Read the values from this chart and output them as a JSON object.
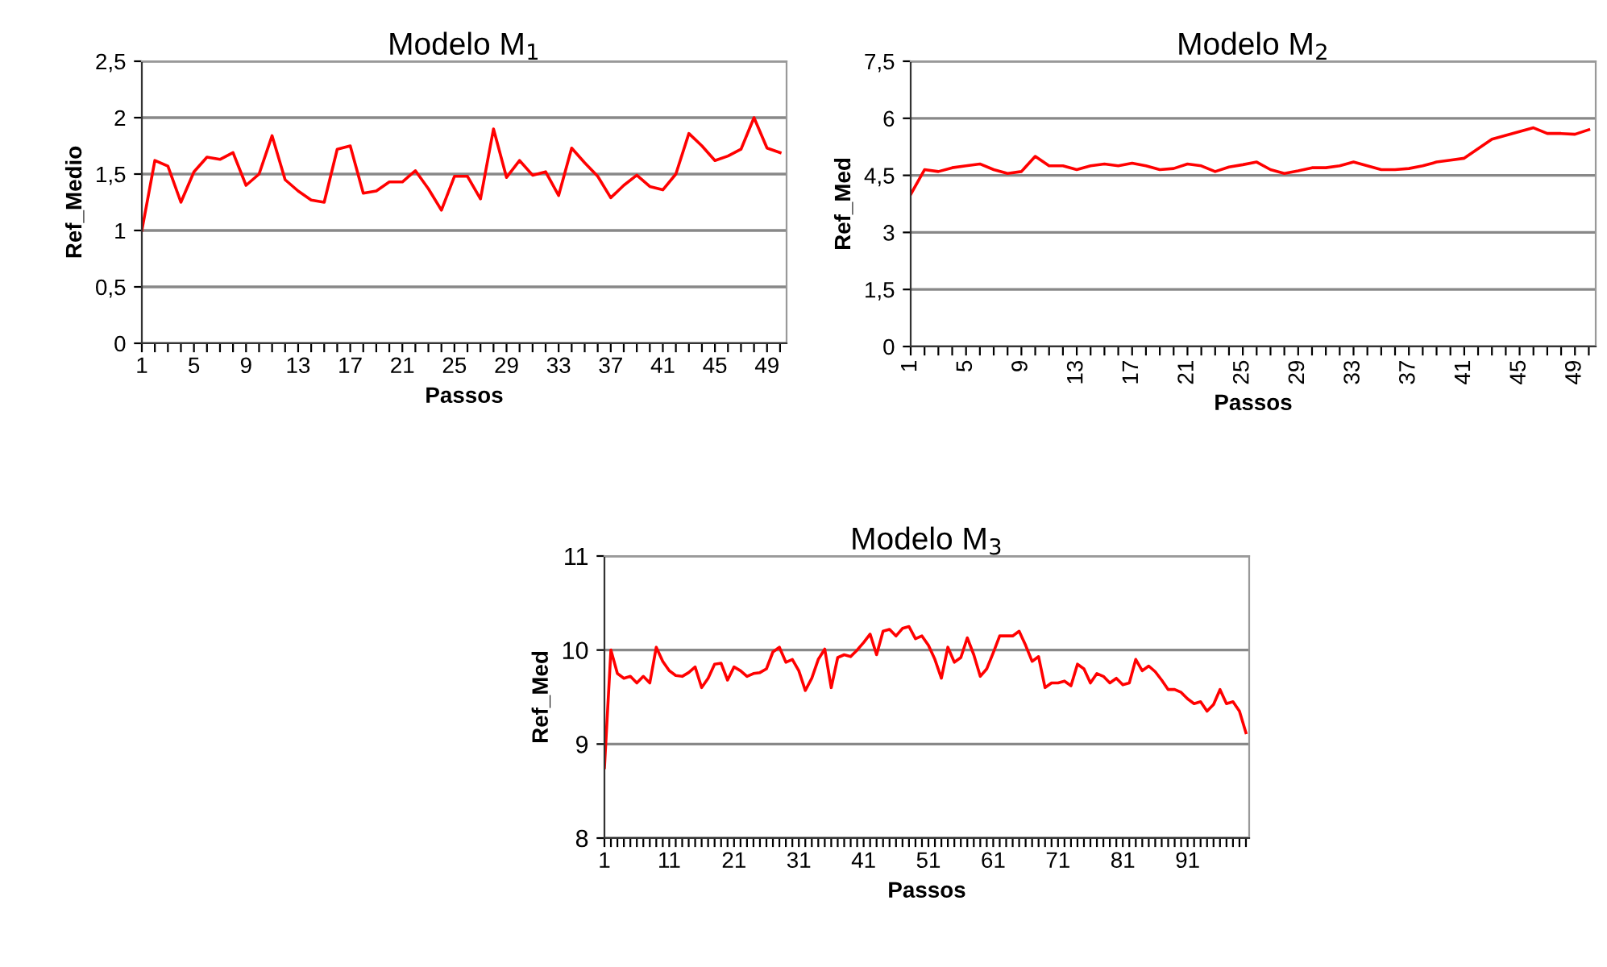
{
  "chart_data": [
    {
      "type": "line",
      "title": "Modelo M$_{1}$",
      "xlabel": "Passos",
      "ylabel": "Ref_Medio",
      "categories": [
        "1",
        null,
        null,
        null,
        "5",
        null,
        null,
        null,
        "9",
        null,
        null,
        null,
        "13",
        null,
        null,
        null,
        "17",
        null,
        null,
        null,
        "21",
        null,
        null,
        null,
        "25",
        null,
        null,
        null,
        "29",
        null,
        null,
        null,
        "33",
        null,
        null,
        null,
        "37",
        null,
        null,
        null,
        "41",
        null,
        null,
        null,
        "45",
        null,
        null,
        null,
        "49",
        null
      ],
      "series": [
        {
          "color": "#ff0000",
          "values": [
            1.0,
            1.62,
            1.57,
            1.25,
            1.52,
            1.65,
            1.63,
            1.69,
            1.4,
            1.5,
            1.84,
            1.45,
            1.35,
            1.27,
            1.25,
            1.72,
            1.75,
            1.33,
            1.35,
            1.43,
            1.43,
            1.53,
            1.37,
            1.18,
            1.48,
            1.48,
            1.28,
            1.9,
            1.47,
            1.62,
            1.49,
            1.52,
            1.31,
            1.73,
            1.6,
            1.48,
            1.29,
            1.4,
            1.49,
            1.39,
            1.36,
            1.5,
            1.86,
            1.75,
            1.62,
            1.66,
            1.72,
            2.0,
            1.73,
            1.69
          ]
        }
      ],
      "ylim": [
        0,
        2.5
      ],
      "yticks": [
        0,
        {
          "value": 0.5,
          "label": "0,5"
        },
        1,
        {
          "value": 1.5,
          "label": "1,5"
        },
        2,
        {
          "value": 2.5,
          "label": "2,5"
        }
      ],
      "grid": "y",
      "marker": "none",
      "line_style": "solid"
    },
    {
      "type": "line",
      "title": "Modelo M$_{2}$",
      "xlabel": "Passos",
      "ylabel": "Ref_Med",
      "categories": [
        "1",
        null,
        null,
        null,
        "5",
        null,
        null,
        null,
        "9",
        null,
        null,
        null,
        "13",
        null,
        null,
        null,
        "17",
        null,
        null,
        null,
        "21",
        null,
        null,
        null,
        "25",
        null,
        null,
        null,
        "29",
        null,
        null,
        null,
        "33",
        null,
        null,
        null,
        "37",
        null,
        null,
        null,
        "41",
        null,
        null,
        null,
        "45",
        null,
        null,
        null,
        "49",
        null
      ],
      "series": [
        {
          "color": "#ff0000",
          "values": [
            4.0,
            4.65,
            4.6,
            4.7,
            4.75,
            4.8,
            4.65,
            4.55,
            4.6,
            5.0,
            4.75,
            4.75,
            4.65,
            4.75,
            4.8,
            4.75,
            4.82,
            4.75,
            4.65,
            4.68,
            4.8,
            4.75,
            4.6,
            4.72,
            4.78,
            4.85,
            4.65,
            4.55,
            4.62,
            4.7,
            4.7,
            4.75,
            4.85,
            4.75,
            4.65,
            4.65,
            4.68,
            4.75,
            4.85,
            4.9,
            4.95,
            5.2,
            5.45,
            5.55,
            5.65,
            5.75,
            5.6,
            5.6,
            5.58,
            5.7
          ]
        }
      ],
      "ylim": [
        0,
        7.5
      ],
      "yticks": [
        0,
        {
          "value": 1.5,
          "label": "1,5"
        },
        3,
        {
          "value": 4.5,
          "label": "4,5"
        },
        6,
        {
          "value": 7.5,
          "label": "7,5"
        }
      ],
      "grid": "y",
      "marker": "none",
      "line_style": "solid"
    },
    {
      "type": "line",
      "title": "Modelo M$_{3}$",
      "xlabel": "Passos",
      "ylabel": "Ref_Med",
      "categories": [
        "1",
        null,
        null,
        null,
        null,
        null,
        null,
        null,
        null,
        null,
        "11",
        null,
        null,
        null,
        null,
        null,
        null,
        null,
        null,
        null,
        "21",
        null,
        null,
        null,
        null,
        null,
        null,
        null,
        null,
        null,
        "31",
        null,
        null,
        null,
        null,
        null,
        null,
        null,
        null,
        null,
        "41",
        null,
        null,
        null,
        null,
        null,
        null,
        null,
        null,
        null,
        "51",
        null,
        null,
        null,
        null,
        null,
        null,
        null,
        null,
        null,
        "61",
        null,
        null,
        null,
        null,
        null,
        null,
        null,
        null,
        null,
        "71",
        null,
        null,
        null,
        null,
        null,
        null,
        null,
        null,
        null,
        "81",
        null,
        null,
        null,
        null,
        null,
        null,
        null,
        null,
        null,
        "91",
        null,
        null,
        null,
        null,
        null,
        null,
        null,
        null,
        null
      ],
      "series": [
        {
          "color": "#ff0000",
          "values": [
            8.75,
            10.0,
            9.75,
            9.7,
            9.72,
            9.65,
            9.72,
            9.65,
            10.03,
            9.88,
            9.78,
            9.73,
            9.72,
            9.76,
            9.82,
            9.6,
            9.7,
            9.85,
            9.86,
            9.68,
            9.82,
            9.78,
            9.72,
            9.75,
            9.76,
            9.8,
            9.98,
            10.03,
            9.87,
            9.9,
            9.78,
            9.57,
            9.7,
            9.9,
            10.01,
            9.6,
            9.92,
            9.95,
            9.93,
            10.0,
            10.08,
            10.17,
            9.95,
            10.2,
            10.22,
            10.15,
            10.23,
            10.25,
            10.12,
            10.15,
            10.05,
            9.9,
            9.7,
            10.03,
            9.87,
            9.92,
            10.13,
            9.95,
            9.72,
            9.8,
            9.97,
            10.15,
            10.15,
            10.15,
            10.2,
            10.05,
            9.88,
            9.93,
            9.6,
            9.65,
            9.65,
            9.67,
            9.62,
            9.85,
            9.8,
            9.65,
            9.75,
            9.72,
            9.65,
            9.7,
            9.63,
            9.65,
            9.9,
            9.78,
            9.83,
            9.77,
            9.68,
            9.58,
            9.58,
            9.55,
            9.48,
            9.43,
            9.45,
            9.35,
            9.42,
            9.58,
            9.43,
            9.45,
            9.35,
            9.12
          ]
        }
      ],
      "ylim": [
        8,
        11
      ],
      "yticks": [
        8,
        9,
        10,
        11
      ],
      "grid": "y",
      "marker": "none",
      "line_style": "solid"
    }
  ]
}
